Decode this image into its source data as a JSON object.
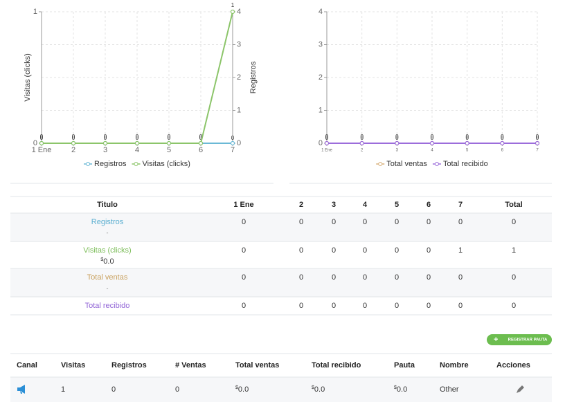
{
  "chart_data": [
    {
      "type": "line",
      "categories": [
        "1 Ene",
        "2",
        "3",
        "4",
        "5",
        "6",
        "7"
      ],
      "ylabel": "Visitas (clicks)",
      "y2label": "Registros",
      "ylim": [
        0,
        1
      ],
      "yticks": [
        0,
        1
      ],
      "y2lim": [
        0,
        4
      ],
      "y2ticks": [
        0,
        1,
        2,
        3,
        4
      ],
      "grid": true,
      "series": [
        {
          "name": "Registros",
          "color": "#6bb9d6",
          "axis": "y2",
          "values": [
            0,
            0,
            0,
            0,
            0,
            0,
            0
          ]
        },
        {
          "name": "Visitas (clicks)",
          "color": "#8cc56a",
          "values": [
            0,
            0,
            0,
            0,
            0,
            0,
            1
          ]
        }
      ]
    },
    {
      "type": "line",
      "categories": [
        "1 Ene",
        "2",
        "3",
        "4",
        "5",
        "6",
        "7"
      ],
      "ylim": [
        0,
        4
      ],
      "yticks": [
        0,
        1,
        2,
        3,
        4
      ],
      "grid": true,
      "series": [
        {
          "name": "Total ventas",
          "color": "#d8b07a",
          "values": [
            0,
            0,
            0,
            0,
            0,
            0,
            0
          ]
        },
        {
          "name": "Total recibido",
          "color": "#9c6ddb",
          "values": [
            0,
            0,
            0,
            0,
            0,
            0,
            0
          ]
        }
      ]
    }
  ],
  "summary_table": {
    "header": [
      "Titulo",
      "1 Ene",
      "2",
      "3",
      "4",
      "5",
      "6",
      "7",
      "Total"
    ],
    "rows": [
      {
        "title": "Registros",
        "note": "-",
        "cells": [
          "0",
          "0",
          "0",
          "0",
          "0",
          "0",
          "0",
          "0"
        ]
      },
      {
        "title": "Visitas (clicks)",
        "note": {
          "currency": "$",
          "amount": "0.0"
        },
        "cells": [
          "0",
          "0",
          "0",
          "0",
          "0",
          "0",
          "1",
          "1"
        ]
      },
      {
        "title": "Total ventas",
        "note": "-",
        "cells": [
          "0",
          "0",
          "0",
          "0",
          "0",
          "0",
          "0",
          "0"
        ]
      },
      {
        "title": "Total recibido",
        "cells": [
          "0",
          "0",
          "0",
          "0",
          "0",
          "0",
          "0",
          "0"
        ]
      }
    ]
  },
  "button": "REGISTRAR PAUTA",
  "channel_table": {
    "header": [
      "Canal",
      "Visitas",
      "Registros",
      "# Ventas",
      "Total ventas",
      "Total recibido",
      "Pauta",
      "Nombre",
      "Acciones"
    ],
    "rows": [
      {
        "cells": [
          "1",
          "0",
          "0",
          {
            "currency": "$",
            "amount": "0.0"
          },
          {
            "currency": "$",
            "amount": "0.0"
          },
          {
            "currency": "$",
            "amount": "0.0"
          },
          "Other"
        ]
      }
    ]
  }
}
